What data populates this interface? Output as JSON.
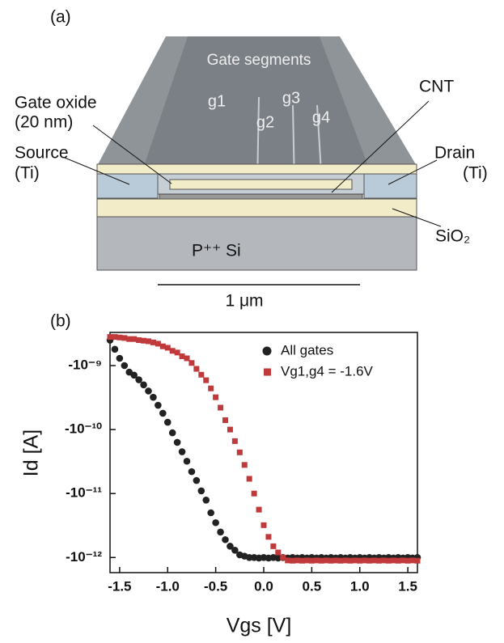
{
  "diagram": {
    "panel_label": "(a)",
    "gate_segments": "Gate segments",
    "gates": [
      "g1",
      "g2",
      "g3",
      "g4"
    ],
    "gate_oxide": "Gate oxide",
    "gate_oxide_thickness": "(20 nm)",
    "cnt": "CNT",
    "source": "Source",
    "source_material": "(Ti)",
    "drain": "Drain",
    "drain_material": "(Ti)",
    "sio2": "SiO₂",
    "substrate": "P⁺⁺ Si",
    "scale_bar": "1 μm"
  },
  "chart_data": {
    "type": "scatter",
    "panel_label": "(b)",
    "xlabel": "Vgs [V]",
    "ylabel": "Id [A]",
    "log_y": true,
    "legend": "upper right",
    "xlim": [
      -1.6,
      1.6
    ],
    "xticks": [
      -1.5,
      {
        "value": -1,
        "label": "-1.0"
      },
      -0.5,
      {
        "value": 0,
        "label": "0.0"
      },
      0.5,
      {
        "value": 1,
        "label": "1.0"
      },
      1.5
    ],
    "ylim": [
      -5.8e-13,
      -3.3e-09
    ],
    "yticks": [
      {
        "value": -1e-09,
        "label": "-10⁻⁹"
      },
      {
        "value": -1e-10,
        "label": "-10⁻¹⁰"
      },
      {
        "value": -1e-11,
        "label": "-10⁻¹¹"
      },
      {
        "value": -1e-12,
        "label": "-10⁻¹²"
      }
    ],
    "x": [
      -1.6,
      -1.55,
      -1.5,
      -1.45,
      -1.4,
      -1.35,
      -1.3,
      -1.25,
      -1.2,
      -1.15,
      -1.1,
      -1.05,
      -1.0,
      -0.95,
      -0.9,
      -0.85,
      -0.8,
      -0.75,
      -0.7,
      -0.65,
      -0.6,
      -0.55,
      -0.5,
      -0.45,
      -0.4,
      -0.35,
      -0.3,
      -0.25,
      -0.2,
      -0.15,
      -0.1,
      -0.05,
      0,
      0.05,
      0.1,
      0.15,
      0.2,
      0.25,
      0.3,
      0.35,
      0.4,
      0.45,
      0.5,
      0.55,
      0.6,
      0.65,
      0.7,
      0.75,
      0.8,
      0.85,
      0.9,
      0.95,
      1.0,
      1.05,
      1.1,
      1.15,
      1.2,
      1.25,
      1.3,
      1.35,
      1.4,
      1.45,
      1.5,
      1.55,
      1.6
    ],
    "series": [
      {
        "name": "All gates",
        "color": "#222222",
        "marker": "circle",
        "values": [
          -2.5e-09,
          -1.8e-09,
          -1.3e-09,
          -1e-09,
          -7.9e-10,
          -7.1e-10,
          -6e-10,
          -5e-10,
          -4e-10,
          -3.2e-10,
          -2.4e-10,
          -1.8e-10,
          -1.3e-10,
          -8.9e-11,
          -6.3e-11,
          -4.5e-11,
          -3.2e-11,
          -2.2e-11,
          -1.6e-11,
          -1.1e-11,
          -7.9e-12,
          -5e-12,
          -3.5e-12,
          -2.5e-12,
          -1.9e-12,
          -1.5e-12,
          -1.3e-12,
          -1.1e-12,
          -1.05e-12,
          -1e-12,
          -1e-12,
          -9.8e-13,
          -1e-12,
          -9.8e-13,
          -1e-12,
          -9.8e-13,
          -1e-12,
          -9.8e-13,
          -1e-12,
          -9.8e-13,
          -1e-12,
          -9.8e-13,
          -1e-12,
          -9.8e-13,
          -1e-12,
          -9.8e-13,
          -1e-12,
          -9.8e-13,
          -1e-12,
          -9.8e-13,
          -1e-12,
          -9.8e-13,
          -1e-12,
          -9.8e-13,
          -1e-12,
          -9.8e-13,
          -1e-12,
          -9.8e-13,
          -1e-12,
          -9.8e-13,
          -1e-12,
          -9.8e-13,
          -1e-12,
          -9.8e-13,
          -1e-12
        ]
      },
      {
        "name": "Vg1,g4 = -1.6V",
        "color": "#c0393b",
        "marker": "square",
        "values": [
          -2.8e-09,
          -2.8e-09,
          -2.75e-09,
          -2.7e-09,
          -2.6e-09,
          -2.6e-09,
          -2.5e-09,
          -2.45e-09,
          -2.4e-09,
          -2.3e-09,
          -2.2e-09,
          -2e-09,
          -1.9e-09,
          -1.7e-09,
          -1.6e-09,
          -1.4e-09,
          -1.3e-09,
          -1.1e-09,
          -8.9e-10,
          -7.2e-10,
          -5.9e-10,
          -4.4e-10,
          -3.2e-10,
          -2.2e-10,
          -1.4e-10,
          -1e-10,
          -6.6e-11,
          -4.4e-11,
          -2.8e-11,
          -1.7e-11,
          -1e-11,
          -5.6e-12,
          -3.2e-12,
          -2.1e-12,
          -1.5e-12,
          -1.2e-12,
          -1e-12,
          -9e-13,
          -8.9e-13,
          -9e-13,
          -8.9e-13,
          -9e-13,
          -8.9e-13,
          -9e-13,
          -8.9e-13,
          -9e-13,
          -8.9e-13,
          -9e-13,
          -8.9e-13,
          -9e-13,
          -8.9e-13,
          -9e-13,
          -8.9e-13,
          -9e-13,
          -8.9e-13,
          -9e-13,
          -8.9e-13,
          -9e-13,
          -8.9e-13,
          -9e-13,
          -8.9e-13,
          -9e-13,
          -8.9e-13,
          -9e-13,
          -8.9e-13
        ]
      }
    ]
  }
}
